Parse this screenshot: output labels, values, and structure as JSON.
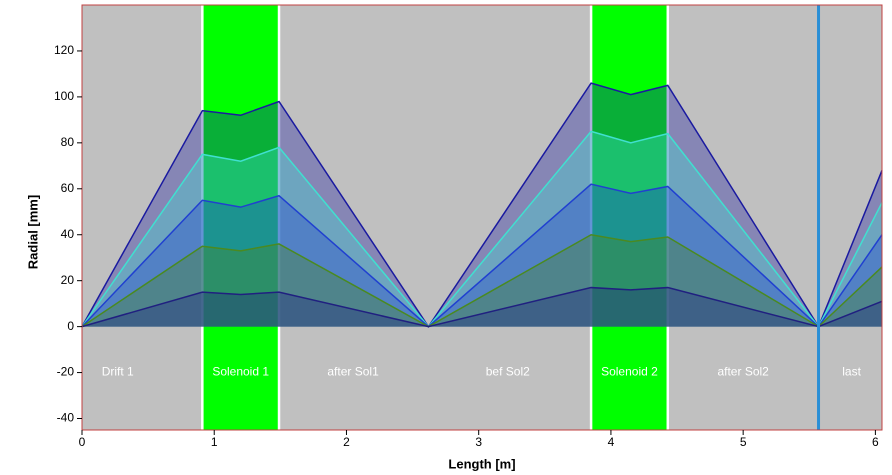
{
  "chart_data": {
    "type": "line",
    "xlabel": "Length [m]",
    "ylabel": "Radial [mm]",
    "xlim": [
      0,
      6.05
    ],
    "ylim": [
      -45,
      140
    ],
    "xticks": [
      0,
      1,
      2,
      3,
      4,
      5,
      6
    ],
    "yticks": [
      -40,
      -20,
      0,
      20,
      40,
      60,
      80,
      100,
      120
    ],
    "background": "#c0c0c0",
    "solenoids": [
      [
        0.91,
        1.49
      ],
      [
        3.85,
        4.43
      ]
    ],
    "solenoid_color": "#00ff00",
    "markers": [
      5.57
    ],
    "marker_color": "#2a8fd6",
    "x": [
      0,
      0.91,
      1.2,
      1.49,
      2.62,
      3.85,
      4.15,
      4.43,
      5.57,
      6.05
    ],
    "series": [
      {
        "color": "#1a1aa0",
        "values": [
          0,
          94,
          92,
          98,
          0,
          106,
          101,
          105,
          0,
          68
        ]
      },
      {
        "color": "#40e0d0",
        "values": [
          0,
          75,
          72,
          78,
          0,
          85,
          80,
          84,
          0,
          54
        ]
      },
      {
        "color": "#2040d0",
        "values": [
          0,
          55,
          52,
          57,
          0,
          62,
          58,
          61,
          0,
          40
        ]
      },
      {
        "color": "#4a8a20",
        "values": [
          0,
          35,
          33,
          36,
          0,
          40,
          37,
          39,
          0,
          26
        ]
      },
      {
        "color": "#202080",
        "values": [
          0,
          15,
          14,
          15,
          0,
          17,
          16,
          17,
          0,
          11
        ]
      }
    ],
    "annotations": [
      {
        "text": "Drift 1",
        "x": 0.27,
        "y": -20
      },
      {
        "text": "Solenoid 1",
        "x": 1.2,
        "y": -20
      },
      {
        "text": "after Sol1",
        "x": 2.05,
        "y": -20
      },
      {
        "text": "bef Sol2",
        "x": 3.22,
        "y": -20
      },
      {
        "text": "Solenoid 2",
        "x": 4.14,
        "y": -20
      },
      {
        "text": "after Sol2",
        "x": 5.0,
        "y": -20
      },
      {
        "text": "last",
        "x": 5.82,
        "y": -20
      }
    ]
  }
}
